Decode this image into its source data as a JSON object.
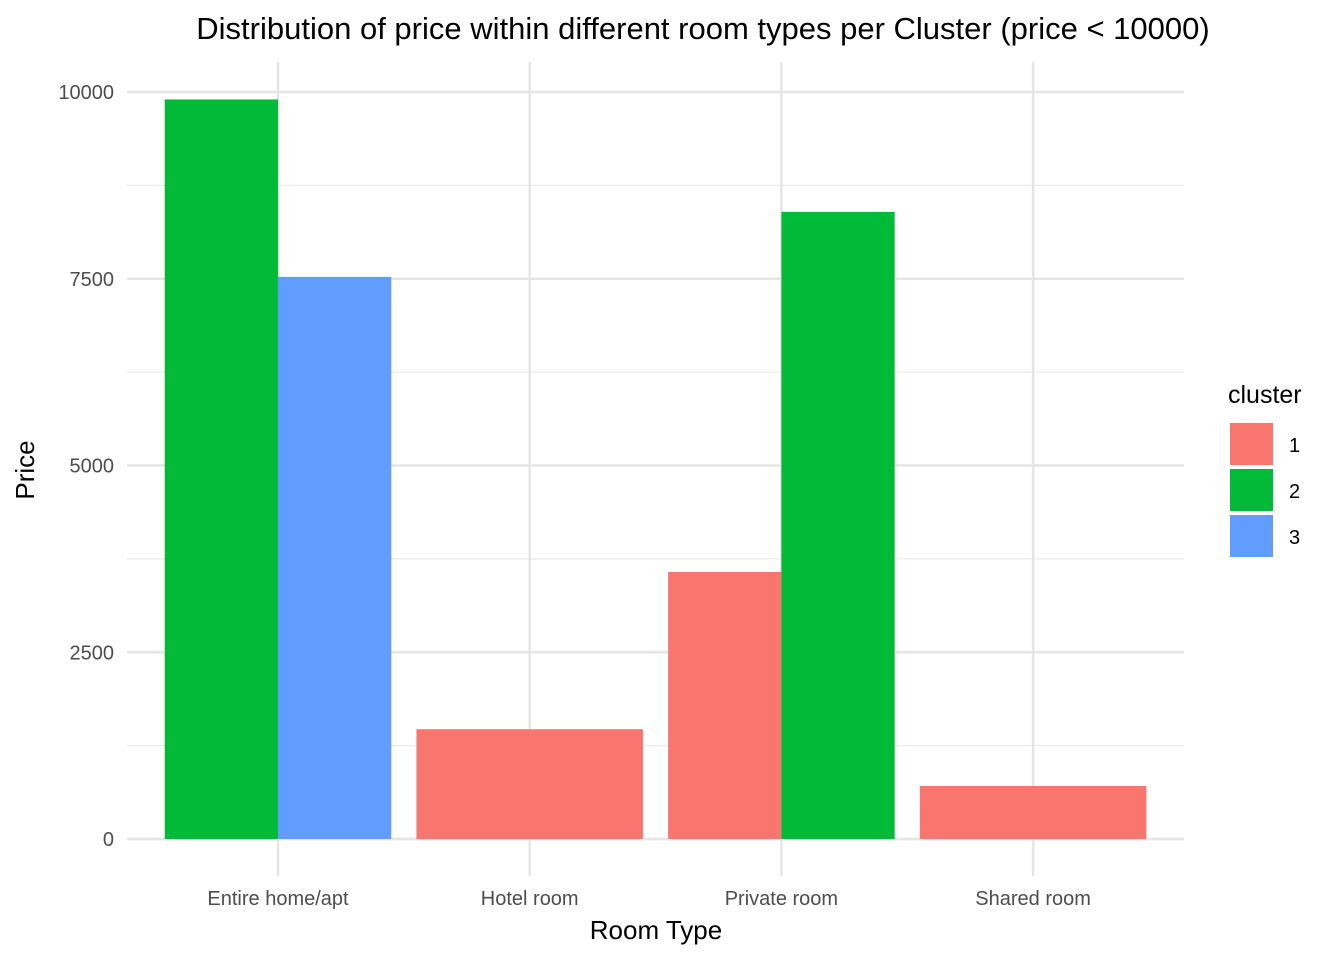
{
  "chart_data": {
    "type": "bar",
    "title": "Distribution of price within different room types per Cluster (price < 10000)",
    "xlabel": "Room Type",
    "ylabel": "Price",
    "categories": [
      "Entire home/apt",
      "Hotel room",
      "Private room",
      "Shared room"
    ],
    "ylim": [
      0,
      10000
    ],
    "yticks": [
      0,
      2500,
      5000,
      7500,
      10000
    ],
    "ytick_labels": [
      "0",
      "2500",
      "5000",
      "7500",
      "10000"
    ],
    "grid": true,
    "legend": {
      "title": "cluster",
      "position": "right"
    },
    "series": [
      {
        "name": "1",
        "color": "#F8766D",
        "values": [
          null,
          1470,
          3575,
          710
        ]
      },
      {
        "name": "2",
        "color": "#00BA38",
        "values": [
          9900,
          null,
          8395,
          null
        ]
      },
      {
        "name": "3",
        "color": "#619CFF",
        "values": [
          7525,
          null,
          null,
          null
        ]
      }
    ]
  }
}
